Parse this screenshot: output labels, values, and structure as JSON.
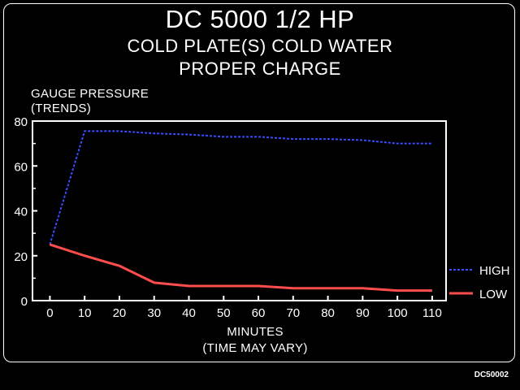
{
  "chart_data": {
    "type": "line",
    "title": "DC 5000 1/2 HP",
    "subtitle_1": "COLD PLATE(S) COLD WATER",
    "subtitle_2": "PROPER CHARGE",
    "ylabel_1": "GAUGE PRESSURE",
    "ylabel_2": "(TRENDS)",
    "xlabel_1": "MINUTES",
    "xlabel_2": "(TIME MAY VARY)",
    "x": [
      0,
      10,
      20,
      30,
      40,
      50,
      60,
      70,
      80,
      90,
      100,
      110
    ],
    "x_ticks": [
      "0",
      "10",
      "20",
      "30",
      "40",
      "50",
      "60",
      "70",
      "80",
      "90",
      "100",
      "110"
    ],
    "y_ticks": [
      "0",
      "20",
      "40",
      "60",
      "80"
    ],
    "xlim": [
      -5,
      114
    ],
    "ylim": [
      0,
      80
    ],
    "legend_position": "right",
    "series": [
      {
        "name": "HIGH",
        "color": "#3a4dff",
        "style": "dashed",
        "values": [
          25,
          75.5,
          75.5,
          74.5,
          74,
          73,
          73,
          72,
          72,
          71.5,
          70,
          70
        ]
      },
      {
        "name": "LOW",
        "color": "#ff4d4d",
        "style": "solid",
        "values": [
          25,
          20,
          15.5,
          8,
          6.5,
          6.5,
          6.5,
          5.5,
          5.5,
          5.5,
          4.5,
          4.5
        ]
      }
    ]
  },
  "footer_code": "DC50002"
}
